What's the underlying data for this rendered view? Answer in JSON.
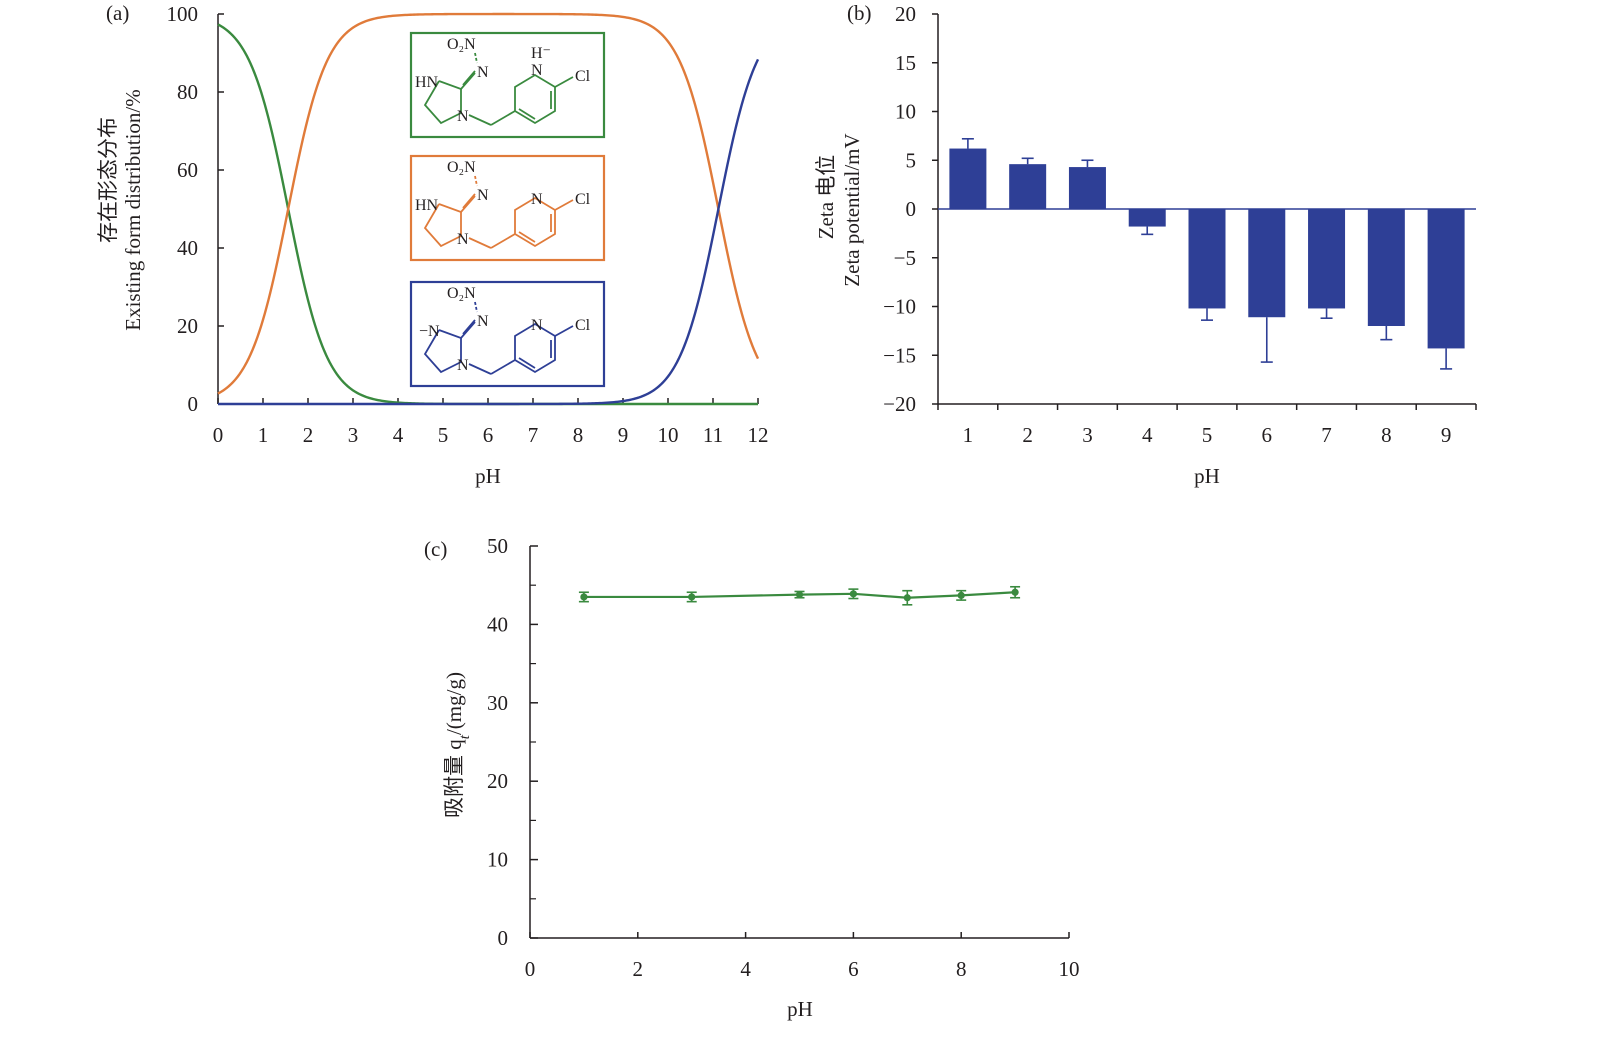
{
  "chart_data": [
    {
      "panel": "(a)",
      "type": "line",
      "xlabel": "pH",
      "ylabel_cn": "存在形态分布",
      "ylabel_en": "Existing form distribution/%",
      "xlim": [
        0,
        12
      ],
      "ylim": [
        0,
        100
      ],
      "xticks": [
        "0",
        "1",
        "2",
        "3",
        "4",
        "5",
        "6",
        "7",
        "8",
        "9",
        "10",
        "11",
        "12"
      ],
      "yticks": [
        "0",
        "20",
        "40",
        "60",
        "80",
        "100"
      ],
      "pKa": [
        1.56,
        11.12
      ],
      "series": [
        {
          "color": "#3a8a3f",
          "x": [
            0,
            0.5,
            1,
            1.5,
            2,
            2.5,
            3,
            3.5,
            4,
            5,
            6,
            7,
            8,
            9,
            10,
            11,
            12
          ],
          "y": [
            97.3,
            91.9,
            78.4,
            53.4,
            26.6,
            10.3,
            3.5,
            1.1,
            0.4,
            0,
            0,
            0,
            0,
            0,
            0,
            0,
            0
          ]
        },
        {
          "color": "#e07b3a",
          "x": [
            0,
            0.5,
            1,
            1.5,
            2,
            2.5,
            3,
            3.5,
            4,
            5,
            6,
            7,
            8,
            9,
            10,
            10.5,
            11,
            11.5,
            12
          ],
          "y": [
            2.7,
            8.1,
            21.6,
            46.6,
            73.4,
            89.7,
            96.5,
            98.9,
            99.6,
            100,
            100,
            100,
            99.99,
            99.2,
            93.0,
            80.7,
            56.9,
            29.4,
            11.7
          ]
        },
        {
          "color": "#2e3f96",
          "x": [
            0,
            8,
            9,
            9.5,
            10,
            10.5,
            11,
            11.5,
            12
          ],
          "y": [
            0,
            0.01,
            0.8,
            2.3,
            7.0,
            19.3,
            43.1,
            70.6,
            88.3
          ]
        }
      ],
      "structures": [
        {
          "color": "#3a8a3f",
          "o2n": "O₂N",
          "n": "N",
          "hn": "HN",
          "nr": "N",
          "ring_n": "N",
          "cl": "Cl",
          "h": "H⁻"
        },
        {
          "color": "#e07b3a",
          "o2n": "O₂N",
          "n": "N",
          "hn": "HN",
          "nr": "N",
          "ring_n": "N",
          "cl": "Cl"
        },
        {
          "color": "#2e3f96",
          "o2n": "O₂N",
          "n": "N",
          "hn": "−N",
          "nr": "N",
          "ring_n": "N",
          "cl": "Cl"
        }
      ]
    },
    {
      "panel": "(b)",
      "type": "bar",
      "xlabel": "pH",
      "ylabel_cn": "Zeta 电位",
      "ylabel_en": "Zeta potential/mV",
      "categories": [
        "1",
        "2",
        "3",
        "4",
        "5",
        "6",
        "7",
        "8",
        "9"
      ],
      "values": [
        6.2,
        4.6,
        4.3,
        -1.8,
        -10.2,
        -11.1,
        -10.2,
        -12.0,
        -14.3
      ],
      "errors": [
        1.0,
        0.6,
        0.7,
        0.8,
        1.2,
        4.6,
        1.0,
        1.4,
        2.1
      ],
      "ylim": [
        -20,
        20
      ],
      "yticks": [
        "−20",
        "−15",
        "−10",
        "−5",
        "0",
        "5",
        "10",
        "15",
        "20"
      ],
      "color": "#2e3f96"
    },
    {
      "panel": "(c)",
      "type": "line",
      "xlabel": "pH",
      "ylabel": "吸附量 q",
      "ylabel_sub": "t",
      "ylabel_unit": "/(mg/g)",
      "xlim": [
        0,
        10
      ],
      "ylim": [
        0,
        50
      ],
      "xticks": [
        "0",
        "2",
        "4",
        "6",
        "8",
        "10"
      ],
      "yticks": [
        "0",
        "10",
        "20",
        "30",
        "40",
        "50"
      ],
      "x": [
        1,
        3,
        5,
        6,
        7,
        8,
        9
      ],
      "y": [
        43.5,
        43.5,
        43.8,
        43.9,
        43.4,
        43.7,
        44.1
      ],
      "errors": [
        0.6,
        0.6,
        0.4,
        0.6,
        0.9,
        0.6,
        0.7
      ],
      "color": "#3a8a3f"
    }
  ]
}
